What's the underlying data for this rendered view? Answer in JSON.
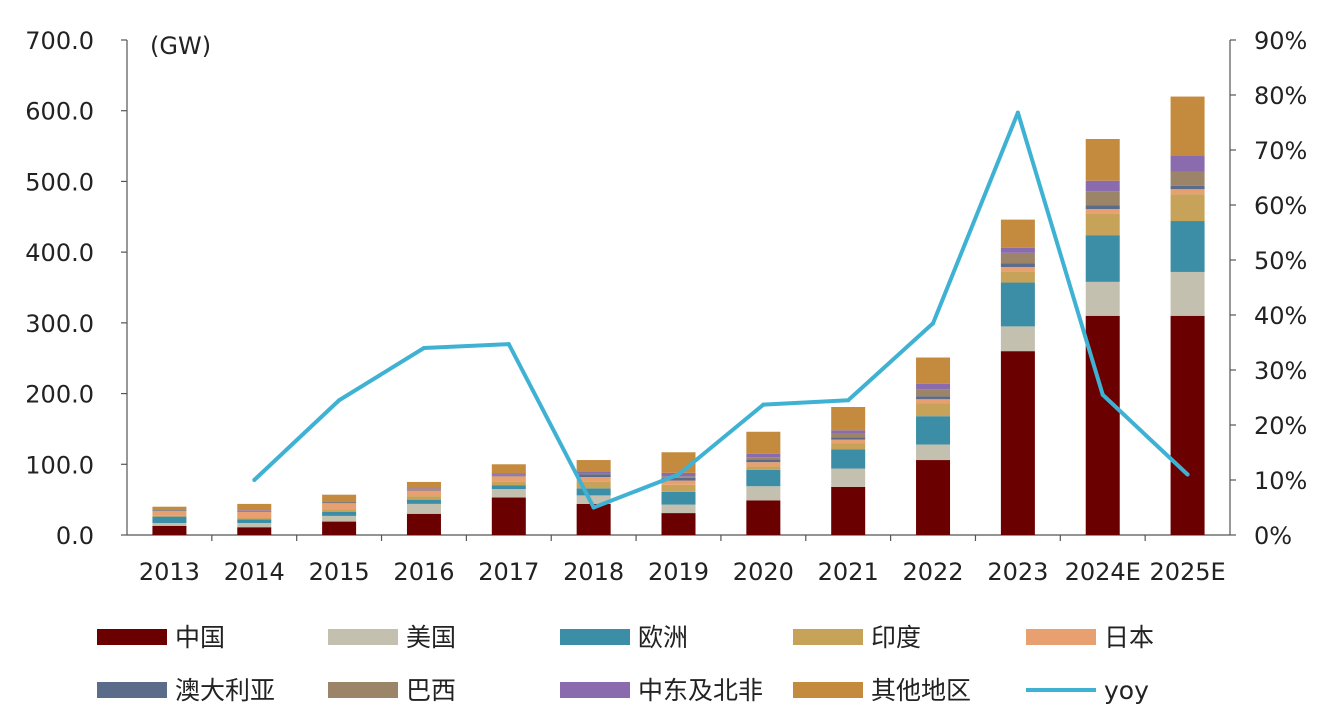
{
  "chart_data": {
    "type": "bar",
    "stacked": true,
    "unit_label": "(GW)",
    "categories": [
      "2013",
      "2014",
      "2015",
      "2016",
      "2017",
      "2018",
      "2019",
      "2020",
      "2021",
      "2022",
      "2023",
      "2024E",
      "2025E"
    ],
    "y_axis": {
      "min": 0,
      "max": 700,
      "ticks": [
        "0.0",
        "100.0",
        "200.0",
        "300.0",
        "400.0",
        "500.0",
        "600.0",
        "700.0"
      ]
    },
    "y2_axis": {
      "min": 0,
      "max": 90,
      "ticks": [
        "0%",
        "10%",
        "20%",
        "30%",
        "40%",
        "50%",
        "60%",
        "70%",
        "80%",
        "90%"
      ]
    },
    "series": [
      {
        "name": "中国",
        "color": "#6b0000",
        "values": [
          13,
          11,
          19,
          30,
          53,
          44,
          31,
          49,
          68,
          106,
          260,
          310,
          310
        ]
      },
      {
        "name": "美国",
        "color": "#c4c0b0",
        "values": [
          4,
          6,
          8,
          14,
          12,
          12,
          12,
          20,
          26,
          22,
          35,
          48,
          62
        ]
      },
      {
        "name": "欧洲",
        "color": "#3b8ea5",
        "values": [
          9,
          5,
          6,
          6,
          5,
          10,
          18,
          23,
          27,
          40,
          62,
          66,
          72
        ]
      },
      {
        "name": "印度",
        "color": "#c7a259",
        "values": [
          1,
          2,
          3,
          5,
          6,
          10,
          10,
          5,
          9,
          18,
          16,
          30,
          38
        ]
      },
      {
        "name": "日本",
        "color": "#e8a070",
        "values": [
          7,
          9,
          9,
          8,
          7,
          6,
          6,
          6,
          5,
          6,
          6,
          7,
          7
        ]
      },
      {
        "name": "澳大利亚",
        "color": "#5b6b8a",
        "values": [
          1,
          1,
          1,
          1,
          1,
          4,
          4,
          4,
          3,
          4,
          5,
          5,
          5
        ]
      },
      {
        "name": "巴西",
        "color": "#9c8468",
        "values": [
          0,
          0,
          1,
          1,
          1,
          1,
          2,
          3,
          5,
          10,
          15,
          20,
          20
        ]
      },
      {
        "name": "中东及北非",
        "color": "#8a6cae",
        "values": [
          0,
          1,
          1,
          1,
          2,
          3,
          5,
          5,
          5,
          8,
          7,
          15,
          23
        ]
      },
      {
        "name": "其他地区",
        "color": "#c48a3e",
        "values": [
          5,
          9,
          9,
          9,
          13,
          16,
          29,
          31,
          33,
          37,
          40,
          59,
          83
        ]
      }
    ],
    "line_series": {
      "name": "yoy",
      "color": "#3fb2d4",
      "axis": "right",
      "values": [
        null,
        10,
        24.5,
        34,
        34.7,
        5,
        11,
        23.7,
        24.5,
        38.5,
        76.8,
        25.5,
        11
      ]
    },
    "legend_position": "bottom"
  }
}
